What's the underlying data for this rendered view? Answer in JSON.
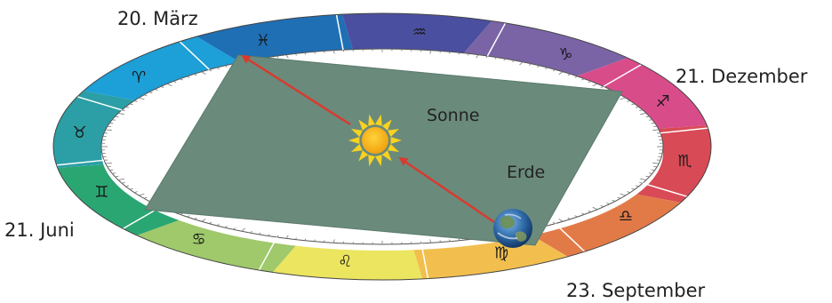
{
  "dates": {
    "march": "20. März",
    "december": "21. Dezember",
    "june": "21. Juni",
    "september": "23. September"
  },
  "labels": {
    "sun": "Sonne",
    "earth": "Erde"
  },
  "zodiac": [
    {
      "name": "pisces",
      "glyph": "♓",
      "color": "#1f6fb5"
    },
    {
      "name": "aquarius",
      "glyph": "♒",
      "color": "#4a4fa0"
    },
    {
      "name": "capricorn",
      "glyph": "♑",
      "color": "#7a64a6"
    },
    {
      "name": "sagittarius",
      "glyph": "♐",
      "color": "#d94c8a"
    },
    {
      "name": "scorpio",
      "glyph": "♏",
      "color": "#d84a55"
    },
    {
      "name": "libra",
      "glyph": "♎",
      "color": "#e27a48"
    },
    {
      "name": "virgo",
      "glyph": "♍",
      "color": "#f2bf4f"
    },
    {
      "name": "leo",
      "glyph": "♌",
      "color": "#ece560"
    },
    {
      "name": "cancer",
      "glyph": "♋",
      "color": "#9fc96b"
    },
    {
      "name": "gemini",
      "glyph": "♊",
      "color": "#2aa673"
    },
    {
      "name": "taurus",
      "glyph": "♉",
      "color": "#2b9fa5"
    },
    {
      "name": "aries",
      "glyph": "♈",
      "color": "#1d9fd8"
    }
  ],
  "colors": {
    "plane": "#6a8a7c",
    "arrow": "#d93a2e",
    "sun": "#f5b21a"
  }
}
